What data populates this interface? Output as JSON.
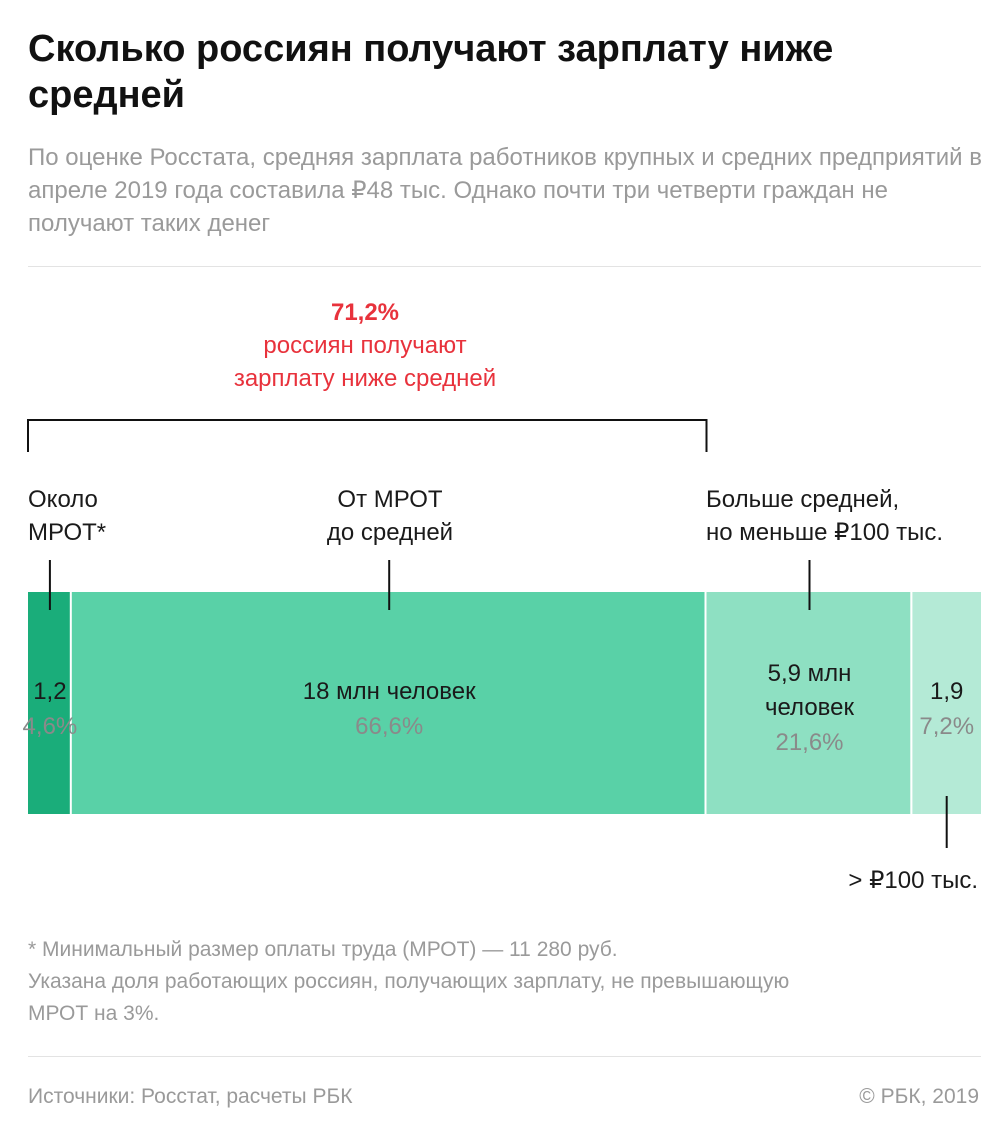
{
  "header": {
    "title": "Сколько россиян получают зарплату ниже средней",
    "subtitle": "По оценке Росстата, средняя зарплата работников крупных и средних предприятий в апреле 2019 года составила ₽48 тыс. Однако почти три четверти граждан не получают таких денег"
  },
  "annotation": {
    "percent": "71,2%",
    "text_line1": "россиян получают",
    "text_line2": "зарплату ниже средней"
  },
  "category_labels": {
    "mrot_line1": "Около",
    "mrot_line2": "МРОТ*",
    "middle_line1": "От МРОТ",
    "middle_line2": "до средней",
    "upper_line1": "Больше средней,",
    "upper_line2": "но меньше ₽100 тыс.",
    "top_label": "> ₽100 тыс."
  },
  "chart_data": {
    "type": "bar",
    "orientation": "horizontal-stacked",
    "title": "Сколько россиян получают зарплату ниже средней",
    "unit": "млн человек",
    "segments": [
      {
        "name": "Около МРОТ*",
        "value": 1.2,
        "value_label": "1,2",
        "share": 4.6,
        "share_label": "4,6%",
        "color": "#1aad7a"
      },
      {
        "name": "От МРОТ до средней",
        "value": 18,
        "value_label": "18 млн человек",
        "share": 66.6,
        "share_label": "66,6%",
        "color": "#59d1a7"
      },
      {
        "name": "Больше средней, но меньше ₽100 тыс.",
        "value": 5.9,
        "value_label_line1": "5,9 млн",
        "value_label_line2": "человек",
        "share": 21.6,
        "share_label": "21,6%",
        "color": "#8ee0c2"
      },
      {
        "name": "> ₽100 тыс.",
        "value": 1.9,
        "value_label": "1,9",
        "share": 7.2,
        "share_label": "7,2%",
        "color": "#b4ead6"
      }
    ],
    "bracket": {
      "label": "71,2%",
      "covers_share": 71.2
    }
  },
  "footnote": {
    "line1": "* Минимальный размер оплаты труда (МРОТ) — 11 280 руб.",
    "line2": "Указана доля работающих россиян, получающих зарплату, не превышающую",
    "line3": "МРОТ на 3%."
  },
  "footer": {
    "source": "Источники: Росстат, расчеты РБК",
    "copyright": "© РБК, 2019"
  },
  "colors": {
    "accent_red": "#e8323c",
    "value_text": "#1a1a1a",
    "share_text": "#8a8a8a"
  }
}
